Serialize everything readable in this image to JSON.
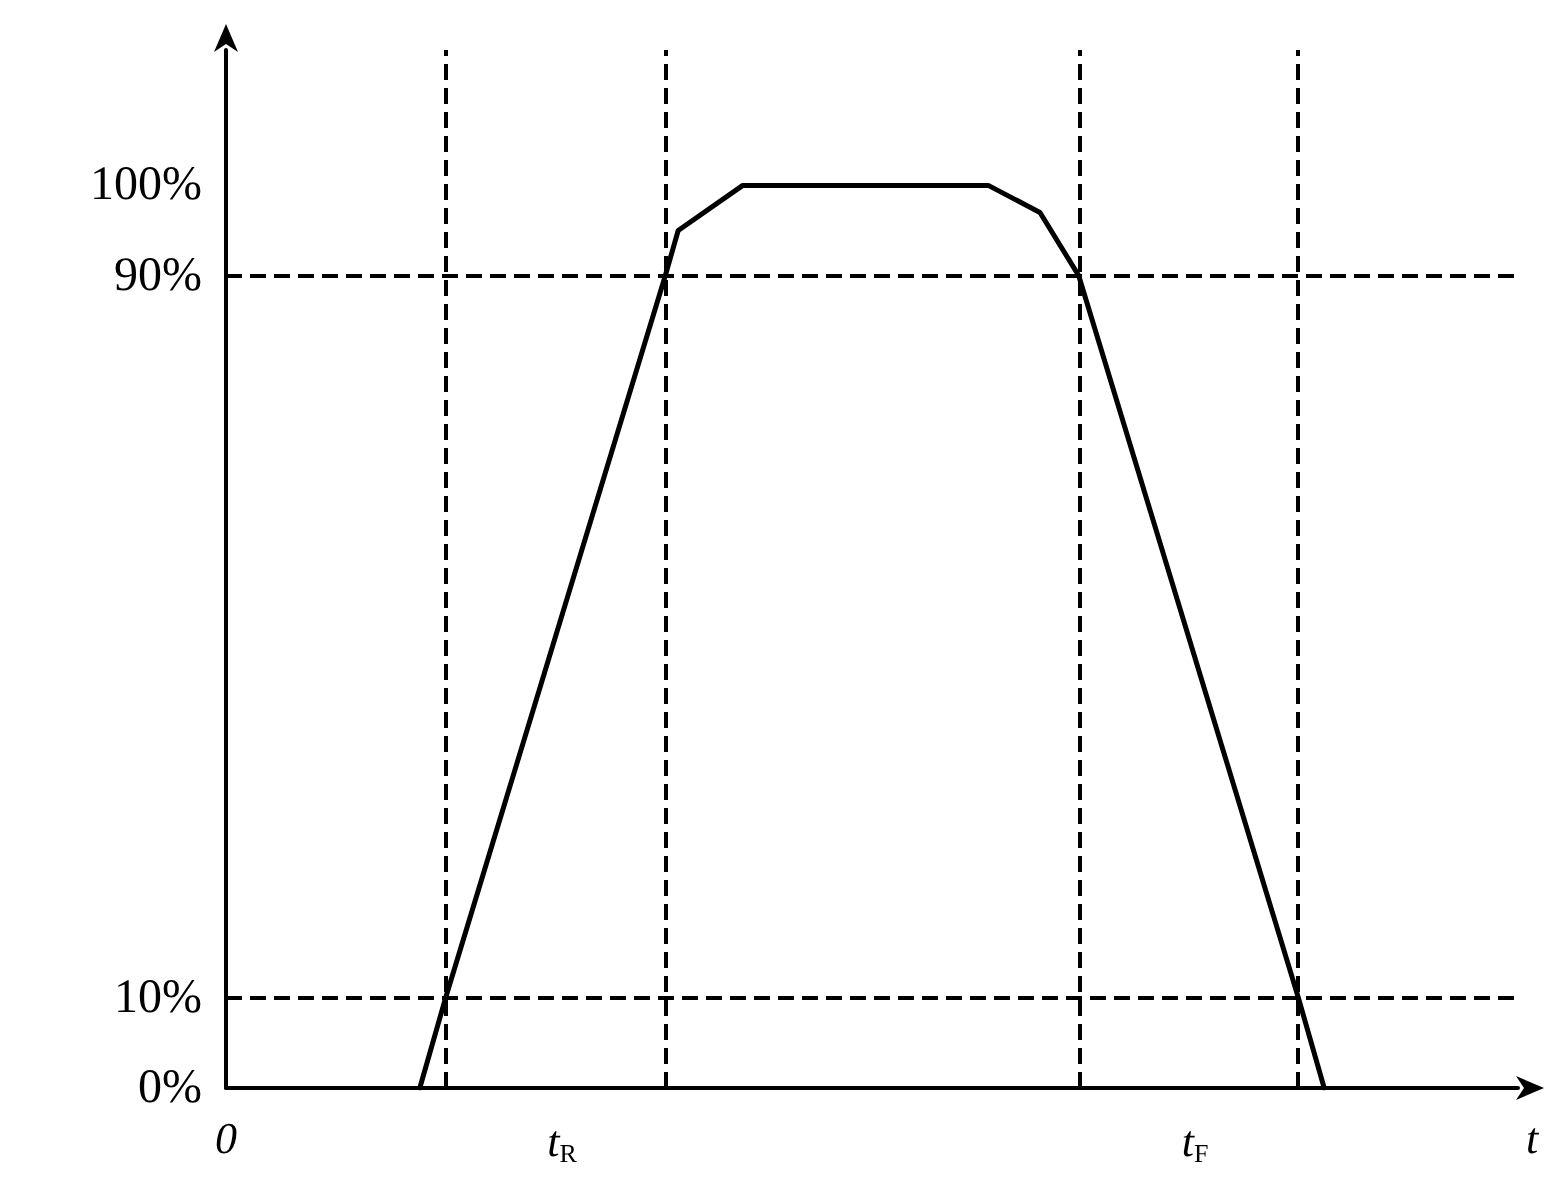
{
  "chart_data": {
    "type": "line",
    "xlabel": "t",
    "categories": [
      "0",
      null,
      null,
      null,
      null,
      null,
      null,
      null,
      null,
      null,
      null,
      null,
      null,
      null,
      null,
      null,
      null,
      null,
      null,
      null,
      null,
      null,
      null,
      null,
      null,
      null,
      "t$_{R}$",
      null,
      null,
      null,
      null,
      null,
      null,
      null,
      null,
      null,
      null,
      null,
      null,
      null,
      null,
      null,
      null,
      null,
      null,
      null,
      null,
      null,
      null,
      null,
      null,
      null,
      null,
      null,
      null,
      null,
      null,
      null,
      null,
      null,
      null,
      null,
      null,
      null,
      null,
      null,
      null,
      null,
      null,
      null,
      null,
      null,
      null,
      null,
      null,
      "t$_{F}$",
      null,
      null,
      null,
      null,
      null,
      null,
      null,
      null,
      null,
      null,
      null,
      null,
      null,
      null,
      null,
      null,
      null,
      null,
      null,
      null,
      null,
      null,
      null,
      null,
      null
    ],
    "series": [
      {
        "color": "#000000",
        "values": [
          null,
          null,
          null,
          null,
          null,
          null,
          null,
          null,
          null,
          null,
          null,
          null,
          null,
          null,
          null,
          0,
          null,
          10,
          null,
          null,
          null,
          null,
          null,
          null,
          null,
          null,
          null,
          null,
          null,
          null,
          null,
          null,
          null,
          null,
          90,
          95,
          null,
          null,
          null,
          null,
          100,
          null,
          null,
          null,
          null,
          null,
          null,
          null,
          null,
          null,
          null,
          null,
          null,
          null,
          null,
          null,
          null,
          null,
          null,
          100,
          null,
          null,
          null,
          97,
          null,
          null,
          90,
          null,
          null,
          null,
          null,
          null,
          null,
          null,
          null,
          null,
          null,
          null,
          null,
          null,
          null,
          null,
          null,
          10,
          null,
          0,
          null,
          null,
          null,
          null,
          null,
          null,
          null,
          null,
          null,
          null,
          null,
          null,
          null,
          null,
          null
        ]
      }
    ],
    "ylim": [
      0,
      115
    ],
    "yticks": [
      {
        "value": 0,
        "label": "0%"
      },
      {
        "value": 10,
        "label": "10%"
      },
      {
        "value": 90,
        "label": "90%"
      },
      {
        "value": 100,
        "label": "100%"
      }
    ],
    "ref_lines": [
      {
        "axis": "y",
        "value": 10,
        "color": "#000000",
        "line_style": "dashed"
      },
      {
        "axis": "y",
        "value": 90,
        "color": "#000000",
        "line_style": "dashed"
      }
    ],
    "grid": false,
    "marker": "none",
    "line_style": "solid"
  }
}
